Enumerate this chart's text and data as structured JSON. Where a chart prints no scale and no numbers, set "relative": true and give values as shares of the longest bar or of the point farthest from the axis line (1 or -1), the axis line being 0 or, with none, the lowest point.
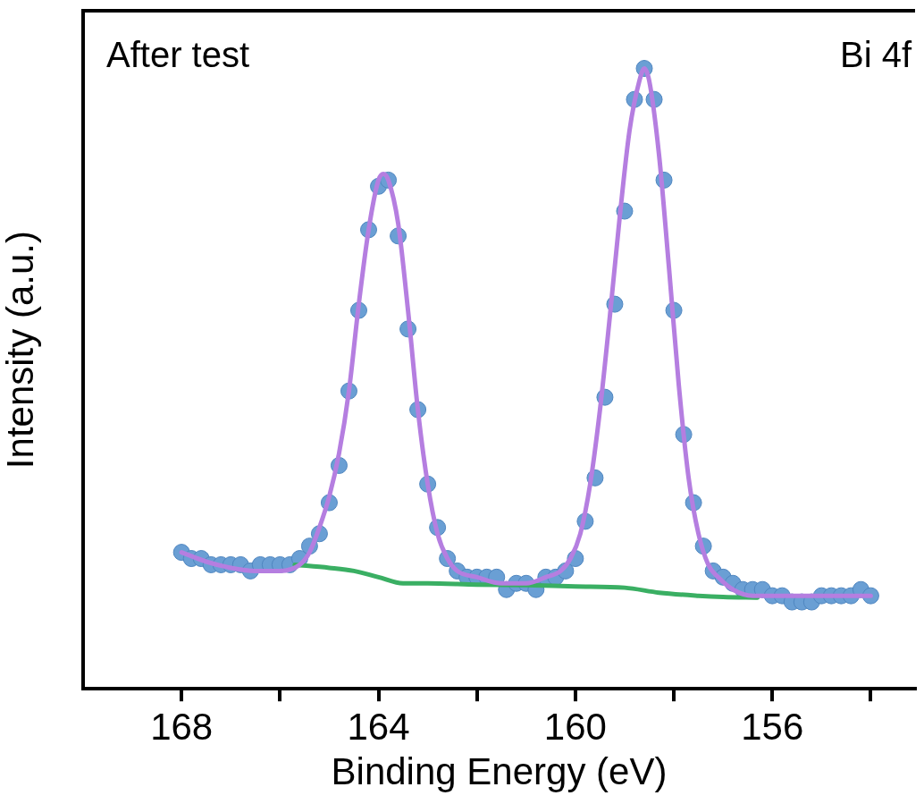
{
  "chart_data": {
    "type": "scatter",
    "xlabel": "Binding Energy (eV)",
    "ylabel": "Intensity (a.u.)",
    "relative": true,
    "legend": false,
    "grid": false,
    "xlim": [
      170,
      153.1
    ],
    "xticks": [
      168,
      {
        "value": 166,
        "label": null
      },
      164,
      {
        "value": 162,
        "label": null
      },
      160,
      {
        "value": 158,
        "label": null
      },
      156,
      {
        "value": 154,
        "label": null
      }
    ],
    "annotations": [
      "After test",
      "Bi 4f"
    ],
    "series": [
      {
        "marker": "circle",
        "color": "#6a9fd4",
        "x": [
          168.0,
          167.8,
          167.6,
          167.4,
          167.2,
          167.0,
          166.8,
          166.6,
          166.4,
          166.2,
          166.0,
          165.8,
          165.6,
          165.4,
          165.2,
          165.0,
          164.8,
          164.6,
          164.4,
          164.2,
          164.0,
          163.8,
          163.6,
          163.4,
          163.2,
          163.0,
          162.8,
          162.6,
          162.4,
          162.2,
          162.0,
          161.8,
          161.6,
          161.4,
          161.2,
          161.0,
          160.8,
          160.6,
          160.4,
          160.2,
          160.0,
          159.8,
          159.6,
          159.4,
          159.2,
          159.0,
          158.8,
          158.6,
          158.4,
          158.2,
          158.0,
          157.8,
          157.6,
          157.4,
          157.2,
          157.0,
          156.8,
          156.6,
          156.4,
          156.2,
          156.0,
          155.8,
          155.6,
          155.4,
          155.2,
          155.0,
          154.8,
          154.6,
          154.4,
          154.2,
          154.0
        ],
        "values": [
          0.22,
          0.21,
          0.21,
          0.2,
          0.2,
          0.2,
          0.2,
          0.19,
          0.2,
          0.2,
          0.2,
          0.2,
          0.21,
          0.23,
          0.25,
          0.3,
          0.36,
          0.48,
          0.61,
          0.74,
          0.81,
          0.82,
          0.73,
          0.58,
          0.45,
          0.33,
          0.26,
          0.21,
          0.19,
          0.18,
          0.18,
          0.18,
          0.18,
          0.16,
          0.17,
          0.17,
          0.16,
          0.18,
          0.18,
          0.19,
          0.21,
          0.27,
          0.34,
          0.47,
          0.62,
          0.77,
          0.95,
          1.0,
          0.95,
          0.82,
          0.61,
          0.41,
          0.3,
          0.23,
          0.19,
          0.18,
          0.17,
          0.16,
          0.16,
          0.16,
          0.15,
          0.15,
          0.14,
          0.14,
          0.14,
          0.15,
          0.15,
          0.15,
          0.15,
          0.16,
          0.15
        ]
      },
      {
        "type": "line",
        "marker": "none",
        "color": "#b57ee0",
        "x": [
          168,
          167.5,
          167,
          166.5,
          166,
          165.6,
          165.4,
          165.2,
          165,
          164.8,
          164.6,
          164.4,
          164.2,
          164,
          163.9,
          163.8,
          163.6,
          163.4,
          163.2,
          163,
          162.8,
          162.6,
          162.4,
          162,
          161.5,
          161,
          160.6,
          160.3,
          160.1,
          159.9,
          159.7,
          159.5,
          159.3,
          159.1,
          158.9,
          158.7,
          158.6,
          158.5,
          158.3,
          158.1,
          157.9,
          157.7,
          157.5,
          157.3,
          157.1,
          156.8,
          156.4,
          156,
          155,
          154
        ],
        "values": [
          0.22,
          0.205,
          0.195,
          0.19,
          0.19,
          0.2,
          0.22,
          0.26,
          0.31,
          0.38,
          0.48,
          0.62,
          0.74,
          0.82,
          0.83,
          0.82,
          0.75,
          0.61,
          0.45,
          0.33,
          0.25,
          0.21,
          0.19,
          0.18,
          0.17,
          0.17,
          0.18,
          0.19,
          0.21,
          0.25,
          0.33,
          0.45,
          0.6,
          0.76,
          0.9,
          0.98,
          1.0,
          0.98,
          0.86,
          0.68,
          0.49,
          0.34,
          0.25,
          0.2,
          0.18,
          0.16,
          0.15,
          0.15,
          0.15,
          0.15
        ]
      },
      {
        "type": "line",
        "marker": "none",
        "color": "#3aaf63",
        "x": [
          165.7,
          165,
          164.5,
          164,
          163.5,
          163,
          162,
          161,
          160,
          159,
          158.3,
          157.5,
          157,
          156.3
        ],
        "values": [
          0.2,
          0.195,
          0.19,
          0.18,
          0.17,
          0.17,
          0.168,
          0.167,
          0.165,
          0.163,
          0.155,
          0.15,
          0.148,
          0.147
        ]
      }
    ]
  }
}
